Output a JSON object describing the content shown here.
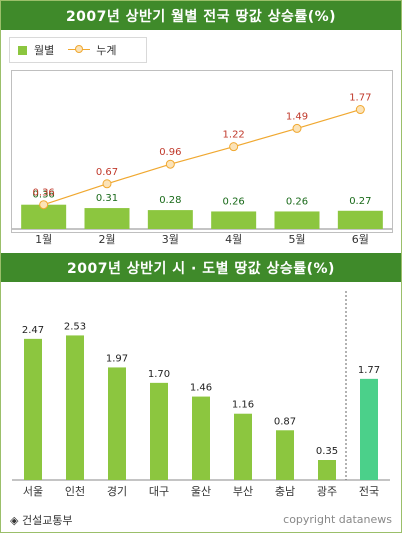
{
  "chart_data": [
    {
      "type": "bar",
      "title": "2007년 상반기 월별 전국 땅값 상승률(%)",
      "categories": [
        "1월",
        "2월",
        "3월",
        "4월",
        "5월",
        "6월"
      ],
      "series": [
        {
          "name": "월별",
          "type": "bar",
          "values": [
            0.36,
            0.31,
            0.28,
            0.26,
            0.26,
            0.27
          ]
        },
        {
          "name": "누계",
          "type": "line",
          "values": [
            0.36,
            0.67,
            0.96,
            1.22,
            1.49,
            1.77
          ]
        }
      ],
      "ylim": [
        0,
        2
      ],
      "legend": "top-left",
      "grid": false,
      "colors": {
        "bar": "#8cc63f",
        "line": "#f0a830",
        "bar_label": "#1a6a1a",
        "line_label": "#c0392b"
      }
    },
    {
      "type": "bar",
      "title": "2007년 상반기 시 · 도별 땅값 상승률(%)",
      "categories": [
        "서울",
        "인천",
        "경기",
        "대구",
        "울산",
        "부산",
        "충남",
        "광주",
        "전국"
      ],
      "values": [
        2.47,
        2.53,
        1.97,
        1.7,
        1.46,
        1.16,
        0.87,
        0.35,
        1.77
      ],
      "ylim": [
        0,
        2.8
      ],
      "grid": false,
      "colors": {
        "bar": "#8cc63f",
        "highlight": "#4bd08a"
      }
    }
  ],
  "footer": {
    "source": "◈ 건설교통부",
    "credit": "copyright datanews"
  }
}
